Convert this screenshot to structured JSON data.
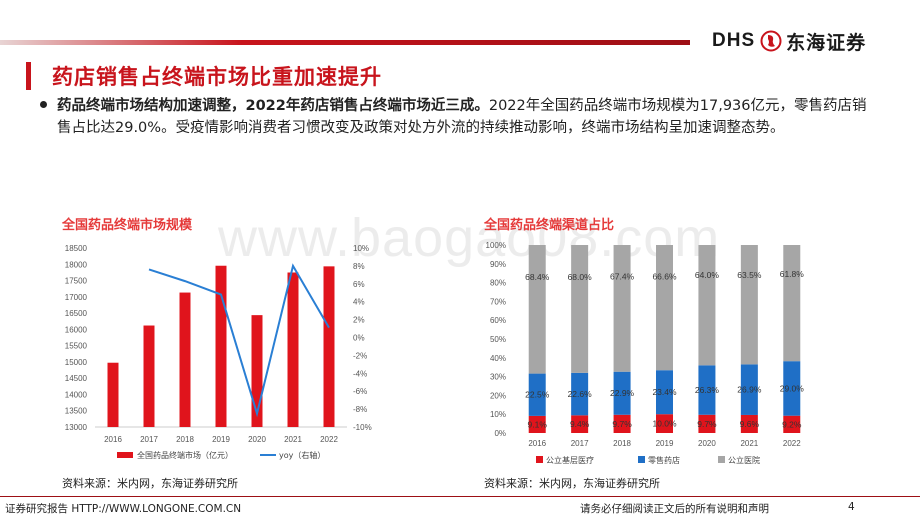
{
  "header": {
    "logo_text": "DHS",
    "logo_cn": "东海证券",
    "brand_color": "#c8141c"
  },
  "page_title": "药店销售占终端市场比重加速提升",
  "bullet": {
    "bold_text": "药品终端市场结构加速调整，2022年药店销售占终端市场近三成。",
    "text": "2022年全国药品终端市场规模为17,936亿元，零售药店销售占比达29.0%。受疫情影响消费者习惯改变及政策对处方外流的持续推动影响，终端市场结构呈加速调整态势。"
  },
  "watermark": "www.baogao08.com",
  "chart_data": [
    {
      "type": "bar",
      "title": "全国药品终端市场规模",
      "categories": [
        "2016",
        "2017",
        "2018",
        "2019",
        "2020",
        "2021",
        "2022"
      ],
      "series": [
        {
          "name": "全国药品终端市场（亿元）",
          "type": "bar",
          "axis": "left",
          "color": "#e0141c",
          "values": [
            14975,
            16118,
            17131,
            17955,
            16437,
            17747,
            17936
          ]
        },
        {
          "name": "yoy（右轴）",
          "type": "line",
          "axis": "right",
          "color": "#2a7fd4",
          "values": [
            null,
            7.6,
            6.3,
            4.8,
            -8.5,
            8.0,
            1.1
          ]
        }
      ],
      "ylim": [
        13000,
        18500
      ],
      "yticks": [
        13000,
        13500,
        14000,
        14500,
        15000,
        15500,
        16000,
        16500,
        17000,
        17500,
        18000,
        18500
      ],
      "y2lim": [
        -10,
        10
      ],
      "y2ticks": [
        "-10%",
        "-8%",
        "-6%",
        "-4%",
        "-2%",
        "0%",
        "2%",
        "4%",
        "6%",
        "8%",
        "10%"
      ],
      "legend_position": "bottom"
    },
    {
      "type": "bar",
      "stacked": true,
      "title": "全国药品终端渠道占比",
      "categories": [
        "2016",
        "2017",
        "2018",
        "2019",
        "2020",
        "2021",
        "2022"
      ],
      "series": [
        {
          "name": "公立基层医疗",
          "color": "#e0141c",
          "values": [
            9.1,
            9.4,
            9.7,
            10.0,
            9.7,
            9.6,
            9.2
          ],
          "labels": [
            "9.1%",
            "9.4%",
            "9.7%",
            "10.0%",
            "9.7%",
            "9.6%",
            "9.2%"
          ]
        },
        {
          "name": "零售药店",
          "color": "#1f6fc6",
          "values": [
            22.5,
            22.6,
            22.9,
            23.4,
            26.3,
            26.9,
            29.0
          ],
          "labels": [
            "22.5%",
            "22.6%",
            "22.9%",
            "23.4%",
            "26.3%",
            "26.9%",
            "29.0%"
          ]
        },
        {
          "name": "公立医院",
          "color": "#a6a6a6",
          "values": [
            68.4,
            68.0,
            67.4,
            66.6,
            64.0,
            63.5,
            61.8
          ],
          "labels": [
            "68.4%",
            "68.0%",
            "67.4%",
            "66.6%",
            "64.0%",
            "63.5%",
            "61.8%"
          ]
        }
      ],
      "ylim": [
        0,
        100
      ],
      "yticks": [
        "0%",
        "10%",
        "20%",
        "30%",
        "40%",
        "50%",
        "60%",
        "70%",
        "80%",
        "90%",
        "100%"
      ],
      "legend_position": "bottom"
    }
  ],
  "sources": {
    "left": "资料来源：米内网，东海证券研究所",
    "right": "资料来源：米内网，东海证券研究所"
  },
  "footer": {
    "left": "证券研究报告 HTTP://WWW.LONGONE.COM.CN",
    "right": "请务必仔细阅读正文后的所有说明和声明",
    "page": "4"
  }
}
